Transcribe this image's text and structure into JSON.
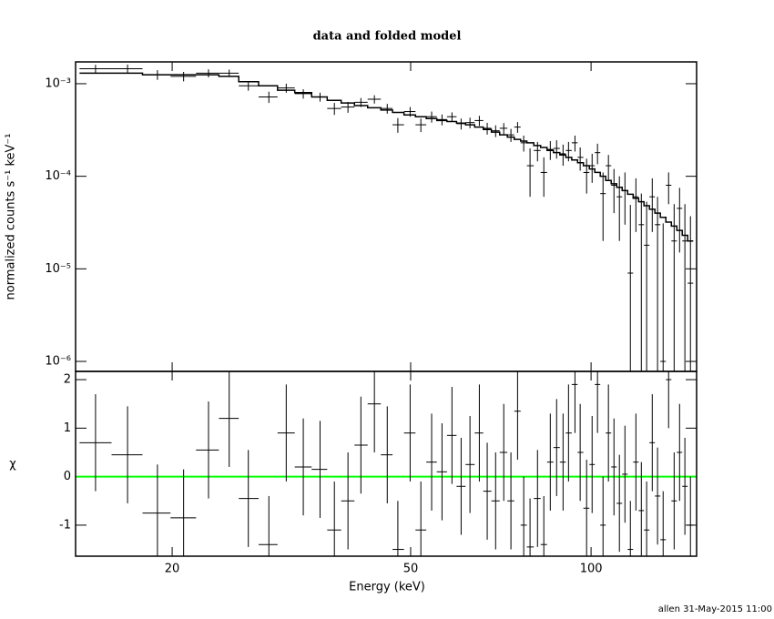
{
  "title": "data and folded model",
  "footer": "allen 31-May-2015 11:00",
  "chart_data": [
    {
      "type": "errorbar",
      "ylabel": "normalized counts s⁻¹ keV⁻¹",
      "xlog": true,
      "ylog": true,
      "xlim": [
        13.8,
        150
      ],
      "xticks": [
        20,
        50,
        100
      ],
      "ylim": [
        7.8e-07,
        0.00172
      ],
      "yticks": [
        {
          "value": 1e-06,
          "label": "10⁻⁶"
        },
        {
          "value": 1e-05,
          "label": "10⁻⁵"
        },
        {
          "value": 0.0001,
          "label": "10⁻⁴"
        },
        {
          "value": 0.001,
          "label": "10⁻³"
        }
      ],
      "x": [
        14.9,
        16.85,
        18.9,
        20.9,
        23.0,
        24.9,
        26.8,
        29.0,
        31.0,
        33.1,
        35.3,
        37.3,
        39.3,
        41.3,
        43.5,
        45.7,
        47.6,
        49.9,
        52.0,
        54.2,
        56.4,
        58.6,
        60.7,
        62.8,
        65.1,
        67.1,
        69.3,
        71.5,
        73.5,
        75.4,
        77.2,
        79.1,
        81.4,
        83.4,
        85.5,
        87.6,
        89.8,
        91.7,
        94.0,
        95.9,
        98.3,
        100.4,
        102.5,
        104.7,
        106.9,
        109.2,
        111.5,
        113.9,
        116.3,
        118.8,
        121.3,
        123.8,
        126.5,
        129.1,
        131.9,
        134.7,
        137.6,
        140.5,
        143.4,
        146.5
      ],
      "values": [
        0.00145,
        0.00145,
        0.00125,
        0.0012,
        0.0013,
        0.0013,
        0.00095,
        0.00072,
        0.0009,
        0.00078,
        0.00072,
        0.00054,
        0.00056,
        0.00063,
        0.00068,
        0.00054,
        0.00036,
        0.0005,
        0.00036,
        0.00044,
        0.00041,
        0.00044,
        0.00037,
        0.00038,
        0.0004,
        0.00033,
        0.00031,
        0.00033,
        0.00028,
        0.00034,
        0.00023,
        0.00013,
        0.00019,
        0.00011,
        0.000195,
        0.0002,
        0.000175,
        0.00019,
        0.00023,
        0.00016,
        0.00011,
        0.00013,
        0.00018,
        6.5e-05,
        0.00013,
        8e-05,
        6e-05,
        7e-05,
        9e-06,
        6e-05,
        3e-05,
        1.8e-05,
        6e-05,
        3e-05,
        1e-06,
        8e-05,
        2e-05,
        4.5e-05,
        2e-05,
        7e-06
      ],
      "yerr": [
        0.00015,
        0.00016,
        0.00015,
        0.00014,
        0.00013,
        0.00012,
        0.00011,
        0.0001,
        0.0001,
        9e-05,
        8e-05,
        8e-05,
        7.5e-05,
        7e-05,
        7e-05,
        6.5e-05,
        6.5e-05,
        6e-05,
        6e-05,
        6e-05,
        5.5e-05,
        5e-05,
        5e-05,
        5e-05,
        5e-05,
        4.8e-05,
        4.5e-05,
        4.5e-05,
        4.5e-05,
        4.5e-05,
        4.5e-05,
        7e-05,
        4.5e-05,
        5e-05,
        4.5e-05,
        4.5e-05,
        4.5e-05,
        4.5e-05,
        4.5e-05,
        4.5e-05,
        4.5e-05,
        4.5e-05,
        4.5e-05,
        4.5e-05,
        4e-05,
        4e-05,
        4e-05,
        4e-05,
        4e-05,
        3.5e-05,
        3.5e-05,
        3.5e-05,
        3.5e-05,
        3e-05,
        3e-05,
        3e-05,
        3e-05,
        3e-05,
        3e-05,
        3e-05
      ],
      "model": [
        0.0013,
        0.0013,
        0.00125,
        0.00125,
        0.00125,
        0.0012,
        0.00105,
        0.00095,
        0.00085,
        0.0008,
        0.00072,
        0.00066,
        0.00062,
        0.00058,
        0.00055,
        0.00052,
        0.00049,
        0.00046,
        0.00044,
        0.00042,
        0.0004,
        0.00039,
        0.000375,
        0.00036,
        0.00034,
        0.00032,
        0.0003,
        0.00028,
        0.000265,
        0.00025,
        0.00024,
        0.00023,
        0.000215,
        0.000205,
        0.00019,
        0.00018,
        0.00017,
        0.00016,
        0.00015,
        0.00014,
        0.00013,
        0.00012,
        0.00011,
        0.0001,
        9e-05,
        8.3e-05,
        7.6e-05,
        7e-05,
        6.4e-05,
        5.8e-05,
        5.3e-05,
        4.8e-05,
        4.4e-05,
        4e-05,
        3.6e-05,
        3.2e-05,
        2.9e-05,
        2.6e-05,
        2.3e-05,
        2e-05
      ],
      "color": "#000000",
      "model_color": "#000000"
    },
    {
      "type": "errorbar",
      "xlabel": "Energy (keV)",
      "ylabel": "χ",
      "xlog": true,
      "ylog": false,
      "xlim": [
        13.8,
        150
      ],
      "xticks": [
        20,
        50,
        100
      ],
      "ylim": [
        -1.64,
        2.17
      ],
      "yticks": [
        -1,
        0,
        1,
        2
      ],
      "x": [
        14.9,
        16.85,
        18.9,
        20.9,
        23.0,
        24.9,
        26.8,
        29.0,
        31.0,
        33.1,
        35.3,
        37.3,
        39.3,
        41.3,
        43.5,
        45.7,
        47.6,
        49.9,
        52.0,
        54.2,
        56.4,
        58.6,
        60.7,
        62.8,
        65.1,
        67.1,
        69.3,
        71.5,
        73.5,
        75.4,
        77.2,
        79.1,
        81.4,
        83.4,
        85.5,
        87.6,
        89.8,
        91.7,
        94.0,
        95.9,
        98.3,
        100.4,
        102.5,
        104.7,
        106.9,
        109.2,
        111.5,
        113.9,
        116.3,
        118.8,
        121.3,
        123.8,
        126.5,
        129.1,
        131.9,
        134.7,
        137.6,
        140.5,
        143.4,
        146.5
      ],
      "values": [
        0.7,
        0.45,
        -0.75,
        -0.85,
        0.55,
        1.2,
        -0.45,
        -1.4,
        0.9,
        0.2,
        0.15,
        -1.1,
        -0.5,
        0.65,
        1.5,
        0.45,
        -1.5,
        0.9,
        -1.1,
        0.3,
        0.1,
        0.85,
        -0.2,
        0.25,
        0.9,
        -0.3,
        -0.5,
        0.5,
        -0.5,
        1.35,
        -1.0,
        -1.45,
        -0.45,
        -1.4,
        0.3,
        0.6,
        0.3,
        0.9,
        1.9,
        0.5,
        -0.65,
        0.25,
        1.9,
        -1.0,
        0.9,
        0.2,
        -0.55,
        0.05,
        -1.5,
        0.3,
        -0.7,
        -1.1,
        0.7,
        -0.4,
        -1.3,
        2.0,
        -0.5,
        0.5,
        -0.2,
        -1.0
      ],
      "yerr": [
        1,
        1,
        1,
        1,
        1,
        1,
        1,
        1,
        1,
        1,
        1,
        1,
        1,
        1,
        1,
        1,
        1,
        1,
        1,
        1,
        1,
        1,
        1,
        1,
        1,
        1,
        1,
        1,
        1,
        1,
        1,
        1,
        1,
        1,
        1,
        1,
        1,
        1,
        1,
        1,
        1,
        1,
        1,
        1,
        1,
        1,
        1,
        1,
        1,
        1,
        1,
        1,
        1,
        1,
        1,
        1,
        1,
        1,
        1,
        1
      ],
      "reference_line": {
        "value": 0,
        "color": "#00ff00"
      },
      "color": "#000000"
    }
  ]
}
